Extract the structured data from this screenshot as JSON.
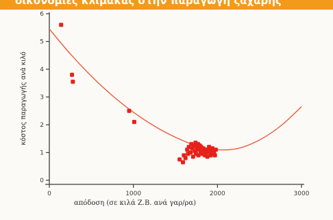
{
  "banner": {
    "text": "οικονομίες κλίμακας στην παραγωγή ζάχαρης"
  },
  "chart_data": {
    "type": "scatter",
    "title": "",
    "xlabel": "απόδοση (σε κιλά Ζ.Β. ανά γαρ/ρα)",
    "ylabel": "κόστος παραγωγής ανά κιλό",
    "xlim": [
      0,
      3000
    ],
    "ylim": [
      0,
      6
    ],
    "x_ticks": [
      0,
      1000,
      2000,
      3000
    ],
    "y_ticks": [
      0,
      1,
      2,
      3,
      4,
      5,
      6
    ],
    "grid": false,
    "legend": "none",
    "colors": {
      "points": "#e8201a",
      "curve": "#ef5a3a",
      "axis": "#3b3b3b"
    },
    "points": [
      [
        140,
        5.6
      ],
      [
        270,
        3.8
      ],
      [
        280,
        3.55
      ],
      [
        950,
        2.5
      ],
      [
        1010,
        2.1
      ],
      [
        1550,
        0.75
      ],
      [
        1590,
        0.65
      ],
      [
        1600,
        0.9
      ],
      [
        1620,
        0.8
      ],
      [
        1640,
        1.1
      ],
      [
        1650,
        0.95
      ],
      [
        1660,
        1.2
      ],
      [
        1680,
        1.0
      ],
      [
        1690,
        1.3
      ],
      [
        1700,
        1.15
      ],
      [
        1710,
        0.85
      ],
      [
        1720,
        1.25
      ],
      [
        1730,
        1.05
      ],
      [
        1740,
        1.35
      ],
      [
        1745,
        0.95
      ],
      [
        1750,
        1.2
      ],
      [
        1760,
        1.1
      ],
      [
        1770,
        1.3
      ],
      [
        1775,
        0.9
      ],
      [
        1780,
        1.15
      ],
      [
        1790,
        1.25
      ],
      [
        1800,
        1.0
      ],
      [
        1805,
        1.2
      ],
      [
        1810,
        1.1
      ],
      [
        1820,
        0.95
      ],
      [
        1830,
        1.15
      ],
      [
        1840,
        1.05
      ],
      [
        1850,
        0.9
      ],
      [
        1860,
        1.1
      ],
      [
        1870,
        1.0
      ],
      [
        1880,
        0.85
      ],
      [
        1890,
        1.1
      ],
      [
        1900,
        1.2
      ],
      [
        1910,
        1.0
      ],
      [
        1920,
        0.9
      ],
      [
        1930,
        1.05
      ],
      [
        1940,
        1.15
      ],
      [
        1950,
        0.95
      ],
      [
        1960,
        1.0
      ],
      [
        1970,
        0.9
      ],
      [
        1980,
        1.1
      ]
    ],
    "fit_curve": [
      [
        0,
        5.45
      ],
      [
        250,
        4.55
      ],
      [
        500,
        3.75
      ],
      [
        750,
        3.05
      ],
      [
        1000,
        2.45
      ],
      [
        1250,
        1.95
      ],
      [
        1500,
        1.55
      ],
      [
        1750,
        1.25
      ],
      [
        2000,
        1.1
      ],
      [
        2250,
        1.15
      ],
      [
        2500,
        1.45
      ],
      [
        2750,
        1.95
      ],
      [
        3000,
        2.65
      ]
    ]
  }
}
